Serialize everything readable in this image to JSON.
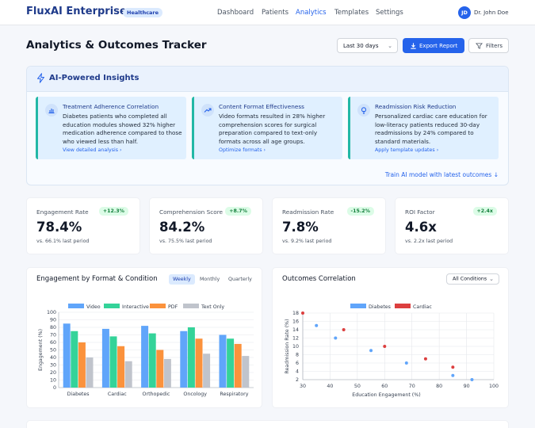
{
  "header": {
    "brand": "FluxAI Enterprise",
    "badge": "Healthcare",
    "nav": [
      "Dashboard",
      "Patients",
      "Analytics",
      "Templates",
      "Settings"
    ],
    "active_nav": "Analytics",
    "user_initials": "JD",
    "user_name": "Dr. John Doe"
  },
  "page": {
    "title": "Analytics & Outcomes Tracker",
    "date_range": "Last 30 days",
    "export_label": "Export Report",
    "filters_label": "Filters"
  },
  "insights": {
    "title": "AI-Powered Insights",
    "cards": [
      {
        "title": "Treatment Adherence Correlation",
        "lines": [
          "Diabetes patients who completed all",
          "education modules showed 32% higher",
          "medication adherence compared to those",
          "who viewed less than half."
        ],
        "link": "View detailed analysis"
      },
      {
        "title": "Content Format Effectiveness",
        "lines": [
          "Video formats resulted in 28% higher",
          "comprehension scores for surgical",
          "preparation compared to text-only",
          "formats across all age groups."
        ],
        "link": "Optimize formats"
      },
      {
        "title": "Readmission Risk Reduction",
        "lines": [
          "Personalized cardiac care education for",
          "low-literacy patients reduced 30-day",
          "readmissions by 24% compared to",
          "standard materials."
        ],
        "link": "Apply template updates"
      }
    ],
    "train_link": "Train AI model with latest outcomes"
  },
  "kpis": [
    {
      "label": "Engagement Rate",
      "delta": "+12.3%",
      "value": "78.4%",
      "compare": "vs. 66.1% last period"
    },
    {
      "label": "Comprehension Score",
      "delta": "+8.7%",
      "value": "84.2%",
      "compare": "vs. 75.5% last period"
    },
    {
      "label": "Readmission Rate",
      "delta": "-15.2%",
      "value": "7.8%",
      "compare": "vs. 9.2% last period"
    },
    {
      "label": "ROI Factor",
      "delta": "+2.4x",
      "value": "4.6x",
      "compare": "vs. 2.2x last period"
    }
  ],
  "engagement_card": {
    "title": "Engagement by Format & Condition",
    "tabs": [
      "Weekly",
      "Monthly",
      "Quarterly"
    ],
    "active_tab": "Weekly"
  },
  "outcomes_card": {
    "title": "Outcomes Correlation",
    "select": "All Conditions"
  },
  "chart_data": [
    {
      "type": "bar",
      "title": "",
      "categories": [
        "Diabetes",
        "Cardiac",
        "Orthopedic",
        "Oncology",
        "Respiratory"
      ],
      "series": [
        {
          "name": "Video",
          "color": "#60a5fa",
          "values": [
            85,
            78,
            82,
            75,
            70
          ]
        },
        {
          "name": "Interactive",
          "color": "#34d399",
          "values": [
            75,
            68,
            72,
            80,
            65
          ]
        },
        {
          "name": "PDF",
          "color": "#fb923c",
          "values": [
            60,
            55,
            50,
            65,
            58
          ]
        },
        {
          "name": "Text Only",
          "color": "#c0c4cc",
          "values": [
            40,
            35,
            38,
            45,
            42
          ]
        }
      ],
      "ylabel": "Engagement (%)",
      "ylim": [
        0,
        100
      ],
      "yticks": [
        0,
        10,
        20,
        30,
        40,
        50,
        60,
        70,
        80,
        90,
        100
      ],
      "legend": "top",
      "grid": true
    },
    {
      "type": "scatter",
      "title": "",
      "series": [
        {
          "name": "Diabetes",
          "color": "#60a5fa",
          "points": [
            [
              35,
              15
            ],
            [
              42,
              12
            ],
            [
              55,
              9
            ],
            [
              68,
              6
            ],
            [
              85,
              3
            ],
            [
              92,
              2
            ]
          ]
        },
        {
          "name": "Cardiac",
          "color": "#dc3f3f",
          "points": [
            [
              30,
              18
            ],
            [
              45,
              14
            ],
            [
              60,
              10
            ],
            [
              75,
              7
            ],
            [
              85,
              5
            ]
          ]
        }
      ],
      "xlabel": "Education Engagement (%)",
      "ylabel": "Readmission Rate (%)",
      "xlim": [
        30,
        100
      ],
      "ylim": [
        2,
        18
      ],
      "xticks": [
        30,
        40,
        50,
        60,
        70,
        80,
        90,
        100
      ],
      "yticks": [
        2,
        4,
        6,
        8,
        10,
        12,
        14,
        16,
        18
      ],
      "legend": "top",
      "grid": true
    }
  ]
}
